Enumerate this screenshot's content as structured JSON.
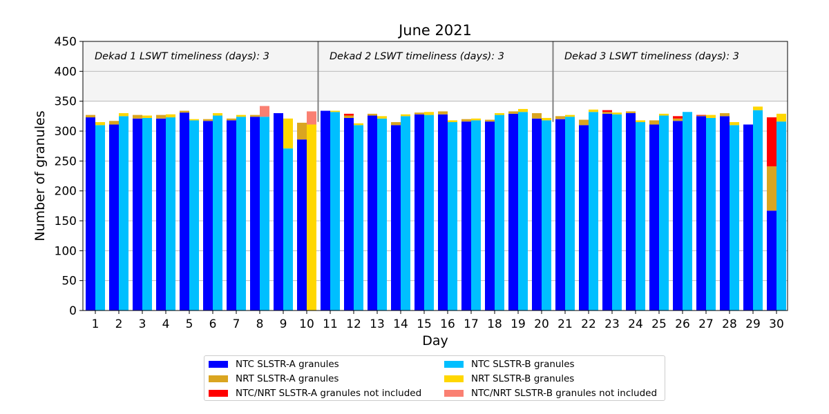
{
  "chart_data": {
    "type": "bar",
    "title": "June 2021",
    "xlabel": "Day",
    "ylabel": "Number of granules",
    "ylim": [
      0,
      450
    ],
    "yticks": [
      0,
      50,
      100,
      150,
      200,
      250,
      300,
      350,
      400,
      450
    ],
    "grid": true,
    "categories": [
      "1",
      "2",
      "3",
      "4",
      "5",
      "6",
      "7",
      "8",
      "9",
      "10",
      "11",
      "12",
      "13",
      "14",
      "15",
      "16",
      "17",
      "18",
      "19",
      "20",
      "21",
      "22",
      "23",
      "24",
      "25",
      "26",
      "27",
      "28",
      "29",
      "30"
    ],
    "annotations": [
      {
        "text": "Dekad 1 LSWT timeliness (days): 3",
        "day_start": 1
      },
      {
        "text": "Dekad 2 LSWT timeliness (days): 3",
        "day_start": 11
      },
      {
        "text": "Dekad 3 LSWT timeliness (days): 3",
        "day_start": 21
      }
    ],
    "shaded_band": [
      350,
      450
    ],
    "dekad_dividers_after_day": [
      10,
      20
    ],
    "legend_position": "bottom-center, below plot",
    "series": [
      {
        "name": "NTC SLSTR-A granules",
        "color": "#0000ff",
        "group": "A",
        "values": [
          323,
          311,
          321,
          321,
          331,
          317,
          318,
          324,
          330,
          286,
          334,
          322,
          326,
          310,
          328,
          328,
          316,
          316,
          329,
          321,
          320,
          310,
          329,
          330,
          311,
          317,
          325,
          325,
          311,
          167
        ]
      },
      {
        "name": "NRT SLSTR-A granules",
        "color": "#daa520",
        "group": "A",
        "values": [
          4,
          6,
          6,
          6,
          3,
          3,
          3,
          3,
          0,
          28,
          0,
          4,
          3,
          5,
          3,
          5,
          4,
          3,
          4,
          9,
          5,
          9,
          3,
          3,
          7,
          4,
          1,
          5,
          0,
          74
        ]
      },
      {
        "name": "NTC/NRT SLSTR-A granules not included",
        "color": "#ff0000",
        "group": "A",
        "values": [
          0,
          0,
          0,
          0,
          0,
          0,
          0,
          0,
          0,
          0,
          0,
          3,
          0,
          0,
          0,
          0,
          0,
          0,
          0,
          0,
          0,
          0,
          3,
          0,
          0,
          4,
          1,
          0,
          0,
          82
        ]
      },
      {
        "name": "NTC SLSTR-B granules",
        "color": "#00bfff",
        "group": "B",
        "values": [
          310,
          325,
          322,
          323,
          318,
          326,
          324,
          324,
          271,
          0,
          332,
          310,
          321,
          325,
          327,
          315,
          318,
          327,
          332,
          318,
          324,
          332,
          328,
          315,
          326,
          332,
          322,
          310,
          335,
          316
        ]
      },
      {
        "name": "NRT SLSTR-B granules",
        "color": "#ffd700",
        "group": "B",
        "values": [
          5,
          5,
          4,
          5,
          2,
          4,
          3,
          0,
          50,
          311,
          2,
          3,
          4,
          3,
          5,
          3,
          3,
          3,
          5,
          4,
          3,
          4,
          3,
          3,
          3,
          0,
          5,
          5,
          6,
          13
        ]
      },
      {
        "name": "NTC/NRT SLSTR-B granules not included",
        "color": "#fa8072",
        "group": "B",
        "values": [
          0,
          0,
          0,
          0,
          0,
          0,
          0,
          18,
          0,
          22,
          0,
          0,
          0,
          0,
          0,
          0,
          0,
          0,
          0,
          0,
          0,
          0,
          0,
          0,
          0,
          0,
          0,
          0,
          0,
          0
        ]
      }
    ]
  }
}
